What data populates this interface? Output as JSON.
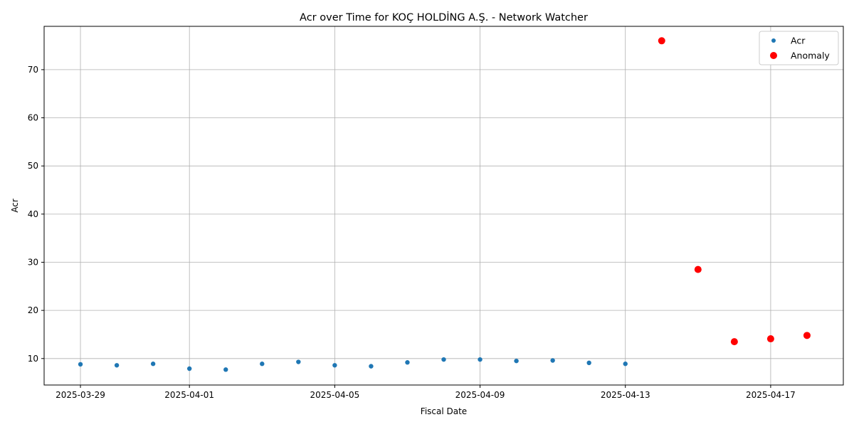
{
  "chart_data": {
    "type": "scatter",
    "title": "Acr over Time for KOÇ HOLDİNG A.Ş. - Network Watcher",
    "xlabel": "Fiscal Date",
    "ylabel": "Acr",
    "x_tick_labels": [
      "2025-03-29",
      "2025-04-01",
      "2025-04-05",
      "2025-04-09",
      "2025-04-13",
      "2025-04-17"
    ],
    "x_tick_dates": [
      "2025-03-29",
      "2025-04-01",
      "2025-04-05",
      "2025-04-09",
      "2025-04-13",
      "2025-04-17"
    ],
    "xlim": [
      "2025-03-28",
      "2025-04-19"
    ],
    "y_ticks": [
      10,
      20,
      30,
      40,
      50,
      60,
      70
    ],
    "ylim": [
      4.5,
      79
    ],
    "grid": true,
    "legend_position": "top-right",
    "series": [
      {
        "name": "Acr",
        "color": "#1f77b4",
        "marker": "small-circle",
        "points": [
          {
            "x": "2025-03-29",
            "y": 8.8
          },
          {
            "x": "2025-03-30",
            "y": 8.6
          },
          {
            "x": "2025-03-31",
            "y": 8.9
          },
          {
            "x": "2025-04-01",
            "y": 7.9
          },
          {
            "x": "2025-04-02",
            "y": 7.7
          },
          {
            "x": "2025-04-03",
            "y": 8.9
          },
          {
            "x": "2025-04-04",
            "y": 9.3
          },
          {
            "x": "2025-04-05",
            "y": 8.6
          },
          {
            "x": "2025-04-06",
            "y": 8.4
          },
          {
            "x": "2025-04-07",
            "y": 9.2
          },
          {
            "x": "2025-04-08",
            "y": 9.8
          },
          {
            "x": "2025-04-09",
            "y": 9.8
          },
          {
            "x": "2025-04-10",
            "y": 9.5
          },
          {
            "x": "2025-04-11",
            "y": 9.6
          },
          {
            "x": "2025-04-12",
            "y": 9.1
          },
          {
            "x": "2025-04-13",
            "y": 8.9
          }
        ]
      },
      {
        "name": "Anomaly",
        "color": "#ff0000",
        "marker": "large-circle",
        "points": [
          {
            "x": "2025-04-14",
            "y": 76.0
          },
          {
            "x": "2025-04-15",
            "y": 28.5
          },
          {
            "x": "2025-04-16",
            "y": 13.5
          },
          {
            "x": "2025-04-17",
            "y": 14.1
          },
          {
            "x": "2025-04-18",
            "y": 14.8
          }
        ]
      }
    ]
  }
}
